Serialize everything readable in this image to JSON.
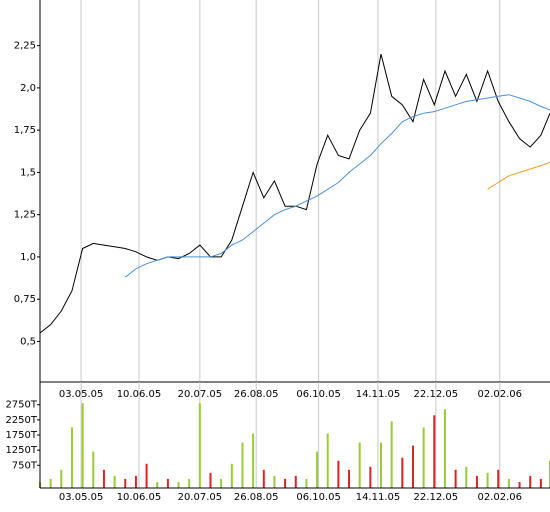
{
  "chart_data": [
    {
      "type": "line",
      "x": [
        "2005-04-06",
        "2005-04-13",
        "2005-04-20",
        "2005-04-27",
        "2005-05-04",
        "2005-05-11",
        "2005-05-18",
        "2005-05-25",
        "2005-06-01",
        "2005-06-08",
        "2005-06-15",
        "2005-06-22",
        "2005-06-29",
        "2005-07-06",
        "2005-07-13",
        "2005-07-20",
        "2005-07-27",
        "2005-08-03",
        "2005-08-10",
        "2005-08-17",
        "2005-08-24",
        "2005-08-31",
        "2005-09-07",
        "2005-09-14",
        "2005-09-21",
        "2005-09-28",
        "2005-10-05",
        "2005-10-12",
        "2005-10-19",
        "2005-10-26",
        "2005-11-02",
        "2005-11-09",
        "2005-11-16",
        "2005-11-23",
        "2005-11-30",
        "2005-12-07",
        "2005-12-14",
        "2005-12-21",
        "2005-12-28",
        "2006-01-04",
        "2006-01-11",
        "2006-01-18",
        "2006-01-25",
        "2006-02-01",
        "2006-02-08",
        "2006-02-15",
        "2006-02-22",
        "2006-03-01",
        "2006-03-07"
      ],
      "series": [
        {
          "color": "#000000",
          "values": [
            0.55,
            0.6,
            0.68,
            0.8,
            1.05,
            1.08,
            1.07,
            1.06,
            1.05,
            1.03,
            1.0,
            0.98,
            1.0,
            0.99,
            1.02,
            1.07,
            1.0,
            1.0,
            1.1,
            1.3,
            1.5,
            1.35,
            1.45,
            1.3,
            1.3,
            1.28,
            1.55,
            1.72,
            1.6,
            1.58,
            1.75,
            1.85,
            2.2,
            1.95,
            1.9,
            1.8,
            2.05,
            1.9,
            2.1,
            1.95,
            2.08,
            1.92,
            2.1,
            1.92,
            1.8,
            1.7,
            1.65,
            1.72,
            1.85
          ]
        },
        {
          "color": "#4a90d9",
          "values": [
            null,
            null,
            null,
            null,
            null,
            null,
            null,
            null,
            0.88,
            0.93,
            0.96,
            0.98,
            1.0,
            1.0,
            1.0,
            1.0,
            1.0,
            1.02,
            1.07,
            1.1,
            1.15,
            1.2,
            1.25,
            1.28,
            1.3,
            1.33,
            1.36,
            1.4,
            1.44,
            1.5,
            1.55,
            1.6,
            1.67,
            1.73,
            1.8,
            1.83,
            1.85,
            1.86,
            1.88,
            1.9,
            1.92,
            1.93,
            1.94,
            1.95,
            1.96,
            1.94,
            1.92,
            1.89,
            1.87
          ]
        },
        {
          "color": "#f0a020",
          "values": [
            null,
            null,
            null,
            null,
            null,
            null,
            null,
            null,
            null,
            null,
            null,
            null,
            null,
            null,
            null,
            null,
            null,
            null,
            null,
            null,
            null,
            null,
            null,
            null,
            null,
            null,
            null,
            null,
            null,
            null,
            null,
            null,
            null,
            null,
            null,
            null,
            null,
            null,
            null,
            null,
            null,
            null,
            1.4,
            1.44,
            1.48,
            1.5,
            1.52,
            1.54,
            1.56
          ]
        }
      ],
      "xlim": [
        "2005-04-06",
        "2006-03-07"
      ],
      "xticks": [
        {
          "value": "2005-05-03",
          "label": "03.05.05"
        },
        {
          "value": "2005-06-10",
          "label": "10.06.05"
        },
        {
          "value": "2005-07-20",
          "label": "20.07.05"
        },
        {
          "value": "2005-08-26",
          "label": "26.08.05"
        },
        {
          "value": "2005-10-06",
          "label": "06.10.05"
        },
        {
          "value": "2005-11-14",
          "label": "14.11.05"
        },
        {
          "value": "2005-12-22",
          "label": "22.12.05"
        },
        {
          "value": "2006-02-02",
          "label": "02.02.06"
        }
      ],
      "ylim": [
        0.26,
        2.52
      ],
      "yticks": [
        {
          "value": 0.5,
          "label": "0,5"
        },
        {
          "value": 0.75,
          "label": "0,75"
        },
        {
          "value": 1.0,
          "label": "1,0"
        },
        {
          "value": 1.25,
          "label": "1,25"
        },
        {
          "value": 1.5,
          "label": "1,5"
        },
        {
          "value": 1.75,
          "label": "1,75"
        },
        {
          "value": 2.0,
          "label": "2,0"
        },
        {
          "value": 2.25,
          "label": "2,25"
        }
      ],
      "grid": true
    },
    {
      "type": "bar",
      "x": [
        "2005-04-06",
        "2005-04-13",
        "2005-04-20",
        "2005-04-27",
        "2005-05-04",
        "2005-05-11",
        "2005-05-18",
        "2005-05-25",
        "2005-06-01",
        "2005-06-08",
        "2005-06-15",
        "2005-06-22",
        "2005-06-29",
        "2005-07-06",
        "2005-07-13",
        "2005-07-20",
        "2005-07-27",
        "2005-08-03",
        "2005-08-10",
        "2005-08-17",
        "2005-08-24",
        "2005-08-31",
        "2005-09-07",
        "2005-09-14",
        "2005-09-21",
        "2005-09-28",
        "2005-10-05",
        "2005-10-12",
        "2005-10-19",
        "2005-10-26",
        "2005-11-02",
        "2005-11-09",
        "2005-11-16",
        "2005-11-23",
        "2005-11-30",
        "2005-12-07",
        "2005-12-14",
        "2005-12-21",
        "2005-12-28",
        "2006-01-04",
        "2006-01-11",
        "2006-01-18",
        "2006-01-25",
        "2006-02-01",
        "2006-02-08",
        "2006-02-15",
        "2006-02-22",
        "2006-03-01",
        "2006-03-07"
      ],
      "values": [
        200,
        300,
        600,
        2000,
        2800,
        1200,
        600,
        400,
        300,
        400,
        800,
        200,
        300,
        200,
        300,
        2800,
        500,
        300,
        800,
        1500,
        1800,
        600,
        400,
        300,
        400,
        300,
        1200,
        1800,
        900,
        600,
        1500,
        700,
        1500,
        2200,
        1000,
        1400,
        2000,
        2400,
        2600,
        600,
        700,
        400,
        500,
        600,
        300,
        200,
        400,
        300,
        900
      ],
      "colors": [
        "#99cc33",
        "#99cc33",
        "#99cc33",
        "#99cc33",
        "#99cc33",
        "#99cc33",
        "#dd2222",
        "#99cc33",
        "#dd2222",
        "#dd2222",
        "#dd2222",
        "#99cc33",
        "#dd2222",
        "#99cc33",
        "#99cc33",
        "#99cc33",
        "#dd2222",
        "#99cc33",
        "#99cc33",
        "#99cc33",
        "#99cc33",
        "#dd2222",
        "#99cc33",
        "#dd2222",
        "#dd2222",
        "#99cc33",
        "#99cc33",
        "#99cc33",
        "#dd2222",
        "#dd2222",
        "#99cc33",
        "#dd2222",
        "#99cc33",
        "#99cc33",
        "#dd2222",
        "#dd2222",
        "#99cc33",
        "#dd2222",
        "#99cc33",
        "#dd2222",
        "#99cc33",
        "#dd2222",
        "#99cc33",
        "#dd2222",
        "#99cc33",
        "#dd2222",
        "#dd2222",
        "#dd2222",
        "#99cc33"
      ],
      "xlim": [
        "2005-04-06",
        "2006-03-07"
      ],
      "xticks": [
        {
          "value": "2005-05-03",
          "label": "03.05.05"
        },
        {
          "value": "2005-06-10",
          "label": "10.06.05"
        },
        {
          "value": "2005-07-20",
          "label": "20.07.05"
        },
        {
          "value": "2005-08-26",
          "label": "26.08.05"
        },
        {
          "value": "2005-10-06",
          "label": "06.10.05"
        },
        {
          "value": "2005-11-14",
          "label": "14.11.05"
        },
        {
          "value": "2005-12-22",
          "label": "22.12.05"
        },
        {
          "value": "2006-02-02",
          "label": "02.02.06"
        }
      ],
      "ylim": [
        0,
        3500
      ],
      "yticks": [
        {
          "value": 750,
          "label": "750T"
        },
        {
          "value": 1250,
          "label": "1250T"
        },
        {
          "value": 1750,
          "label": "1750T"
        },
        {
          "value": 2250,
          "label": "2250T"
        },
        {
          "value": 2750,
          "label": "2750T"
        }
      ],
      "grid": true
    }
  ]
}
